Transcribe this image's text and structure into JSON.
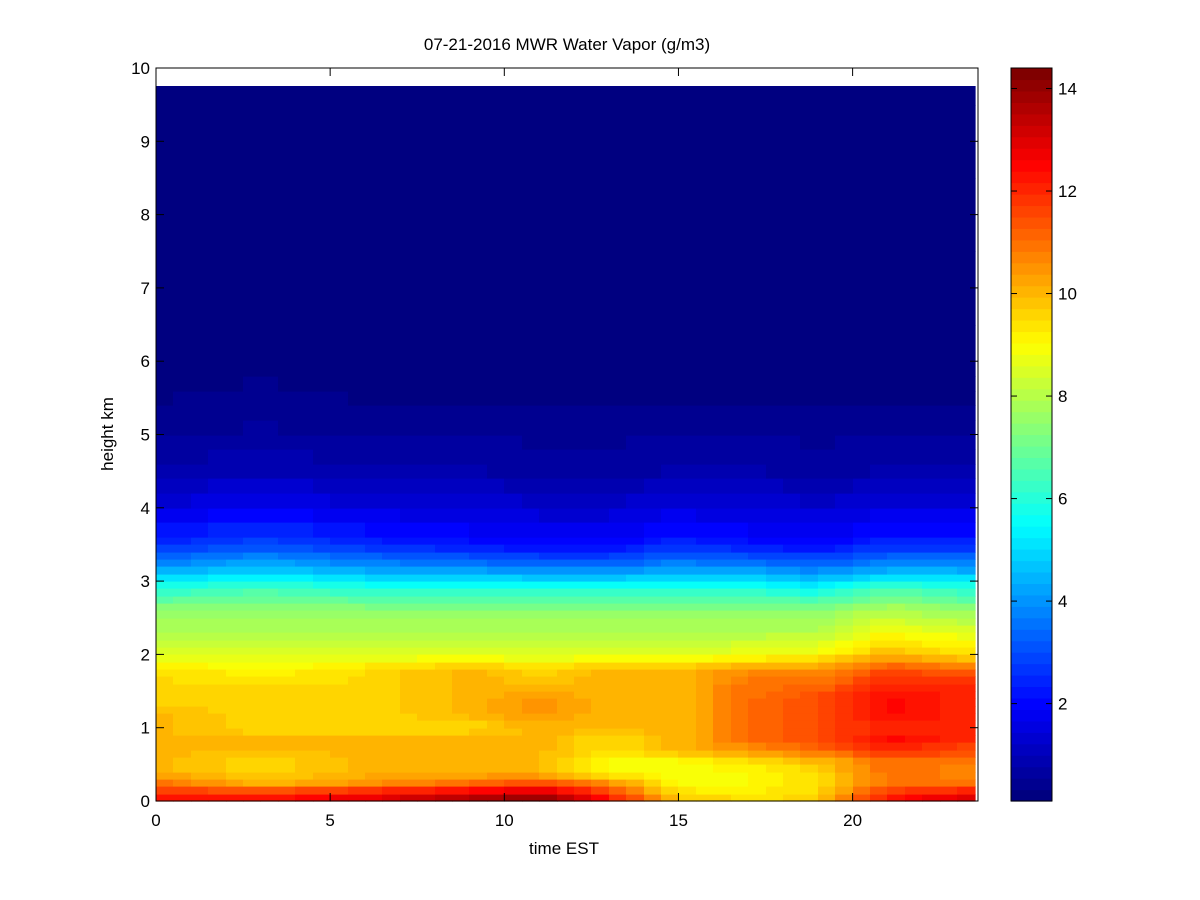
{
  "chart_data": {
    "type": "heatmap",
    "title": "07-21-2016 MWR Water Vapor (g/m3)",
    "xlabel": "time EST",
    "ylabel": "height km",
    "xlim": [
      0,
      23.6
    ],
    "ylim": [
      0,
      10
    ],
    "x_ticks": [
      0,
      5,
      10,
      15,
      20
    ],
    "y_ticks": [
      0,
      1,
      2,
      3,
      4,
      5,
      6,
      7,
      8,
      9,
      10
    ],
    "colorbar": {
      "colormap": "jet",
      "range": [
        0.1,
        14.4
      ],
      "ticks": [
        2,
        4,
        6,
        8,
        10,
        12,
        14
      ],
      "placement": "right"
    },
    "time_range": [
      0,
      23.5
    ],
    "time_step": 0.5,
    "data_top_height": 9.75,
    "profile_heights": [
      0,
      0.1,
      0.25,
      0.4,
      0.55,
      0.7,
      0.85,
      1.0,
      1.2,
      1.4,
      1.6,
      1.8,
      2.0,
      2.3,
      2.6,
      2.9,
      3.2,
      3.5,
      4.0,
      4.5,
      5.0,
      5.5,
      6.0,
      7.0,
      8.0,
      9.75
    ],
    "profiles": [
      {
        "time": 0,
        "values": [
          12.5,
          12.0,
          11.0,
          10.0,
          10.0,
          10.0,
          10.0,
          10.0,
          10.0,
          9.5,
          9.5,
          9.5,
          8.5,
          8.0,
          7.5,
          6.0,
          4.0,
          2.5,
          1.5,
          0.8,
          0.5,
          0.3,
          0.2,
          0.15,
          0.12,
          0.1
        ]
      },
      {
        "time": 3,
        "values": [
          12.5,
          12.0,
          10.0,
          9.5,
          9.5,
          10.0,
          10.0,
          9.5,
          9.5,
          9.5,
          9.5,
          9.0,
          8.5,
          8.0,
          7.5,
          6.5,
          4.5,
          3.0,
          1.8,
          1.0,
          0.6,
          0.4,
          0.25,
          0.15,
          0.12,
          0.1
        ]
      },
      {
        "time": 6,
        "values": [
          13.0,
          12.5,
          10.5,
          10.0,
          10.0,
          10.0,
          10.0,
          9.5,
          9.5,
          9.5,
          9.5,
          9.5,
          8.5,
          8.0,
          7.5,
          6.0,
          4.0,
          2.5,
          1.5,
          0.8,
          0.5,
          0.3,
          0.2,
          0.15,
          0.12,
          0.1
        ]
      },
      {
        "time": 9,
        "values": [
          14.0,
          13.0,
          11.0,
          10.0,
          10.0,
          10.0,
          10.0,
          9.5,
          10.0,
          10.0,
          10.0,
          10.0,
          8.5,
          8.0,
          7.5,
          6.0,
          3.8,
          2.2,
          1.4,
          0.8,
          0.5,
          0.3,
          0.2,
          0.15,
          0.12,
          0.1
        ]
      },
      {
        "time": 11,
        "values": [
          14.4,
          13.5,
          11.5,
          10.0,
          10.0,
          10.0,
          10.0,
          10.0,
          10.5,
          10.5,
          10.0,
          9.5,
          8.5,
          8.0,
          7.5,
          6.0,
          3.5,
          2.0,
          1.3,
          0.7,
          0.5,
          0.3,
          0.2,
          0.15,
          0.12,
          0.1
        ]
      },
      {
        "time": 13,
        "values": [
          12.5,
          12.0,
          10.5,
          9.0,
          9.0,
          9.5,
          9.5,
          10.0,
          10.0,
          10.0,
          10.0,
          10.0,
          8.5,
          8.0,
          7.5,
          6.0,
          3.5,
          2.0,
          1.3,
          0.7,
          0.5,
          0.3,
          0.2,
          0.15,
          0.12,
          0.1
        ]
      },
      {
        "time": 15,
        "values": [
          10.0,
          9.5,
          9.0,
          8.8,
          9.0,
          10.0,
          10.0,
          10.0,
          10.0,
          10.0,
          10.0,
          10.0,
          8.5,
          8.0,
          7.5,
          6.0,
          4.0,
          2.5,
          1.5,
          0.8,
          0.5,
          0.3,
          0.2,
          0.15,
          0.12,
          0.1
        ]
      },
      {
        "time": 17,
        "values": [
          9.5,
          9.2,
          9.0,
          9.0,
          9.5,
          10.5,
          11.0,
          11.0,
          11.0,
          11.0,
          11.0,
          10.5,
          8.8,
          8.0,
          7.5,
          6.0,
          3.8,
          2.2,
          1.4,
          0.8,
          0.5,
          0.3,
          0.2,
          0.15,
          0.12,
          0.1
        ]
      },
      {
        "time": 19,
        "values": [
          9.8,
          9.5,
          9.5,
          9.5,
          10.0,
          11.0,
          11.5,
          11.5,
          11.5,
          11.5,
          11.0,
          10.5,
          9.0,
          8.0,
          7.5,
          5.5,
          3.5,
          2.0,
          1.3,
          0.7,
          0.5,
          0.3,
          0.2,
          0.15,
          0.12,
          0.1
        ]
      },
      {
        "time": 21,
        "values": [
          12.5,
          12.0,
          11.0,
          11.0,
          11.0,
          12.0,
          12.5,
          12.0,
          12.5,
          12.5,
          12.0,
          11.5,
          10.0,
          9.0,
          8.0,
          6.5,
          4.0,
          2.5,
          1.5,
          0.8,
          0.5,
          0.3,
          0.2,
          0.15,
          0.12,
          0.1
        ]
      },
      {
        "time": 23.5,
        "values": [
          13.5,
          12.5,
          11.0,
          10.5,
          11.0,
          11.5,
          12.0,
          12.0,
          12.0,
          12.0,
          12.0,
          11.0,
          9.5,
          8.5,
          7.5,
          6.0,
          4.0,
          2.5,
          1.5,
          0.8,
          0.5,
          0.3,
          0.2,
          0.15,
          0.12,
          0.1
        ]
      }
    ]
  }
}
